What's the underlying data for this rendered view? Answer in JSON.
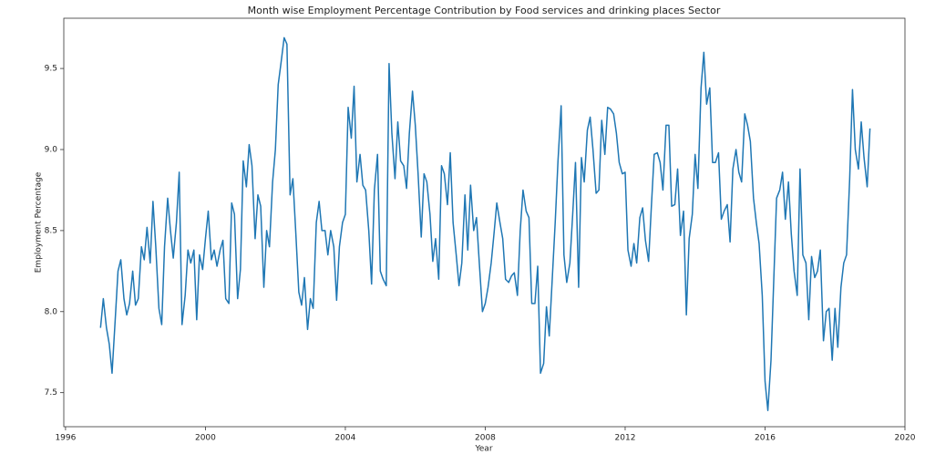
{
  "chart_data": {
    "type": "line",
    "title": "Month wise Employment Percentage Contribution by Food services and drinking places Sector",
    "xlabel": "Year",
    "ylabel": "Employment Percentage",
    "color": "#1f77b4",
    "xlim": [
      1995.95,
      2020.0
    ],
    "ylim": [
      7.29,
      9.81
    ],
    "xticks": [
      1996,
      2000,
      2004,
      2008,
      2012,
      2016,
      2020
    ],
    "yticks": [
      7.5,
      {
        "value": 8,
        "label": "8.0"
      },
      8.5,
      {
        "value": 9,
        "label": "9.0"
      },
      9.5
    ],
    "x": [
      1997,
      1997.08,
      1997.17,
      1997.25,
      1997.33,
      1997.42,
      1997.5,
      1997.58,
      1997.67,
      1997.75,
      1997.83,
      1997.92,
      1998,
      1998.08,
      1998.17,
      1998.25,
      1998.33,
      1998.42,
      1998.5,
      1998.58,
      1998.67,
      1998.75,
      1998.83,
      1998.92,
      1999,
      1999.08,
      1999.17,
      1999.25,
      1999.33,
      1999.42,
      1999.5,
      1999.58,
      1999.67,
      1999.75,
      1999.83,
      1999.92,
      2000,
      2000.08,
      2000.17,
      2000.25,
      2000.33,
      2000.42,
      2000.5,
      2000.58,
      2000.67,
      2000.75,
      2000.83,
      2000.92,
      2001,
      2001.08,
      2001.17,
      2001.25,
      2001.33,
      2001.42,
      2001.5,
      2001.58,
      2001.67,
      2001.75,
      2001.83,
      2001.92,
      2002,
      2002.08,
      2002.17,
      2002.25,
      2002.33,
      2002.42,
      2002.5,
      2002.58,
      2002.67,
      2002.75,
      2002.83,
      2002.92,
      2003,
      2003.08,
      2003.17,
      2003.25,
      2003.33,
      2003.42,
      2003.5,
      2003.58,
      2003.67,
      2003.75,
      2003.83,
      2003.92,
      2004,
      2004.08,
      2004.17,
      2004.25,
      2004.33,
      2004.42,
      2004.5,
      2004.58,
      2004.67,
      2004.75,
      2004.83,
      2004.92,
      2005,
      2005.08,
      2005.17,
      2005.25,
      2005.33,
      2005.42,
      2005.5,
      2005.58,
      2005.67,
      2005.75,
      2005.83,
      2005.92,
      2006,
      2006.08,
      2006.17,
      2006.25,
      2006.33,
      2006.42,
      2006.5,
      2006.58,
      2006.67,
      2006.75,
      2006.83,
      2006.92,
      2007,
      2007.08,
      2007.17,
      2007.25,
      2007.33,
      2007.42,
      2007.5,
      2007.58,
      2007.67,
      2007.75,
      2007.83,
      2007.92,
      2008,
      2008.08,
      2008.17,
      2008.25,
      2008.33,
      2008.42,
      2008.5,
      2008.58,
      2008.67,
      2008.75,
      2008.83,
      2008.92,
      2009,
      2009.08,
      2009.17,
      2009.25,
      2009.33,
      2009.42,
      2009.5,
      2009.58,
      2009.67,
      2009.75,
      2009.83,
      2009.92,
      2010,
      2010.08,
      2010.17,
      2010.25,
      2010.33,
      2010.42,
      2010.5,
      2010.58,
      2010.67,
      2010.75,
      2010.83,
      2010.92,
      2011,
      2011.08,
      2011.17,
      2011.25,
      2011.33,
      2011.42,
      2011.5,
      2011.58,
      2011.67,
      2011.75,
      2011.83,
      2011.92,
      2012,
      2012.08,
      2012.17,
      2012.25,
      2012.33,
      2012.42,
      2012.5,
      2012.58,
      2012.67,
      2012.75,
      2012.83,
      2012.92,
      2013,
      2013.08,
      2013.17,
      2013.25,
      2013.33,
      2013.42,
      2013.5,
      2013.58,
      2013.67,
      2013.75,
      2013.83,
      2013.92,
      2014,
      2014.08,
      2014.17,
      2014.25,
      2014.33,
      2014.42,
      2014.5,
      2014.58,
      2014.67,
      2014.75,
      2014.83,
      2014.92,
      2015,
      2015.08,
      2015.17,
      2015.25,
      2015.33,
      2015.42,
      2015.5,
      2015.58,
      2015.67,
      2015.75,
      2015.83,
      2015.92,
      2016,
      2016.08,
      2016.17,
      2016.25,
      2016.33,
      2016.42,
      2016.5,
      2016.58,
      2016.67,
      2016.75,
      2016.83,
      2016.92,
      2017,
      2017.08,
      2017.17,
      2017.25,
      2017.33,
      2017.42,
      2017.5,
      2017.58,
      2017.67,
      2017.75,
      2017.83,
      2017.92,
      2018,
      2018.08,
      2018.17,
      2018.25,
      2018.33,
      2018.42,
      2018.5,
      2018.58,
      2018.67,
      2018.75,
      2018.83,
      2018.92,
      2019
    ],
    "values": [
      7.9,
      8.08,
      7.9,
      7.8,
      7.62,
      7.95,
      8.25,
      8.32,
      8.08,
      7.98,
      8.05,
      8.25,
      8.04,
      8.08,
      8.4,
      8.32,
      8.52,
      8.3,
      8.68,
      8.4,
      8.02,
      7.92,
      8.4,
      8.7,
      8.5,
      8.33,
      8.55,
      8.86,
      7.92,
      8.1,
      8.38,
      8.3,
      8.38,
      7.95,
      8.35,
      8.26,
      8.45,
      8.62,
      8.32,
      8.38,
      8.28,
      8.38,
      8.44,
      8.08,
      8.05,
      8.67,
      8.6,
      8.08,
      8.26,
      8.93,
      8.77,
      9.03,
      8.9,
      8.45,
      8.72,
      8.65,
      8.15,
      8.5,
      8.4,
      8.8,
      9.0,
      9.4,
      9.55,
      9.69,
      9.65,
      8.72,
      8.82,
      8.5,
      8.12,
      8.04,
      8.21,
      7.89,
      8.08,
      8.02,
      8.55,
      8.68,
      8.5,
      8.5,
      8.35,
      8.5,
      8.4,
      8.07,
      8.4,
      8.55,
      8.6,
      9.26,
      9.07,
      9.39,
      8.8,
      8.97,
      8.78,
      8.75,
      8.5,
      8.17,
      8.75,
      8.97,
      8.25,
      8.2,
      8.16,
      9.53,
      9.1,
      8.82,
      9.17,
      8.93,
      8.9,
      8.76,
      9.1,
      9.36,
      9.15,
      8.85,
      8.46,
      8.85,
      8.8,
      8.6,
      8.31,
      8.45,
      8.2,
      8.9,
      8.85,
      8.66,
      8.98,
      8.55,
      8.35,
      8.16,
      8.3,
      8.72,
      8.38,
      8.78,
      8.5,
      8.58,
      8.3,
      8.0,
      8.05,
      8.15,
      8.3,
      8.48,
      8.67,
      8.55,
      8.45,
      8.2,
      8.18,
      8.22,
      8.24,
      8.1,
      8.5,
      8.75,
      8.62,
      8.58,
      8.05,
      8.05,
      8.28,
      7.62,
      7.68,
      8.03,
      7.85,
      8.22,
      8.55,
      8.93,
      9.27,
      8.35,
      8.18,
      8.3,
      8.6,
      8.92,
      8.15,
      8.95,
      8.8,
      9.12,
      9.2,
      9.0,
      8.73,
      8.75,
      9.18,
      8.97,
      9.26,
      9.25,
      9.22,
      9.1,
      8.92,
      8.85,
      8.86,
      8.38,
      8.28,
      8.42,
      8.3,
      8.58,
      8.64,
      8.44,
      8.31,
      8.65,
      8.97,
      8.98,
      8.92,
      8.75,
      9.15,
      9.15,
      8.65,
      8.66,
      8.88,
      8.47,
      8.62,
      7.98,
      8.45,
      8.6,
      8.97,
      8.76,
      9.38,
      9.6,
      9.28,
      9.38,
      8.92,
      8.92,
      8.98,
      8.57,
      8.62,
      8.66,
      8.43,
      8.88,
      9.0,
      8.86,
      8.8,
      9.22,
      9.15,
      9.05,
      8.7,
      8.55,
      8.42,
      8.1,
      7.57,
      7.39,
      7.7,
      8.2,
      8.7,
      8.75,
      8.86,
      8.57,
      8.8,
      8.48,
      8.25,
      8.1,
      8.88,
      8.35,
      8.3,
      7.95,
      8.34,
      8.21,
      8.25,
      8.38,
      7.82,
      8.0,
      8.02,
      7.7,
      8.02,
      7.78,
      8.15,
      8.3,
      8.35,
      8.82,
      9.37,
      9.0,
      8.88,
      9.17,
      8.95,
      8.77,
      9.13
    ]
  }
}
